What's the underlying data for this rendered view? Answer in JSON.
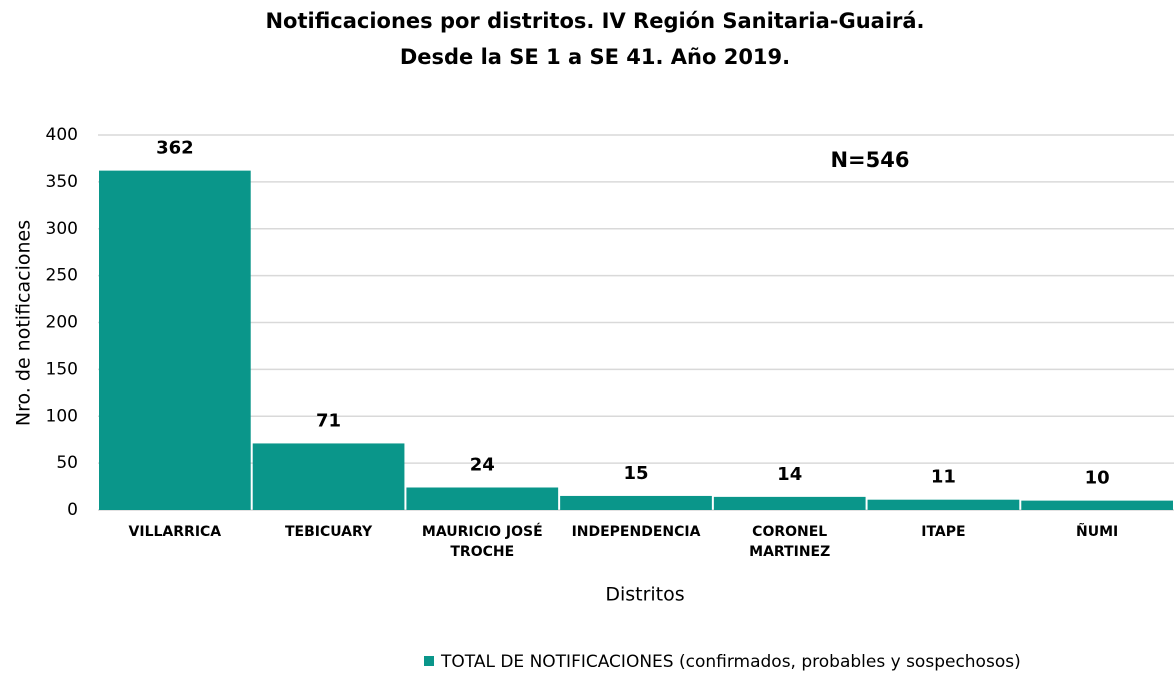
{
  "chart_data": {
    "type": "bar",
    "title": "Notificaciones por distritos. IV Región Sanitaria-Guairá.",
    "subtitle": "Desde la SE 1 a SE 41. Año 2019.",
    "x_label": "Distritos",
    "y_label": "Nro. de notificaciones",
    "annotation": "N=546",
    "categories": [
      "VILLARRICA",
      "TEBICUARY",
      "MAURICIO JOSÉ TROCHE",
      "INDEPENDENCIA",
      "CORONEL MARTINEZ",
      "ITAPE",
      "ÑUMI"
    ],
    "series": [
      {
        "name": "TOTAL DE NOTIFICACIONES (confirmados, probables y sospechosos)",
        "color": "#0a968a",
        "values": [
          362,
          71,
          24,
          15,
          14,
          11,
          10
        ]
      }
    ],
    "ylim": [
      0,
      400
    ],
    "yticks": [
      0,
      50,
      100,
      150,
      200,
      250,
      300,
      350,
      400
    ],
    "grid": true,
    "legend": "bottom"
  }
}
